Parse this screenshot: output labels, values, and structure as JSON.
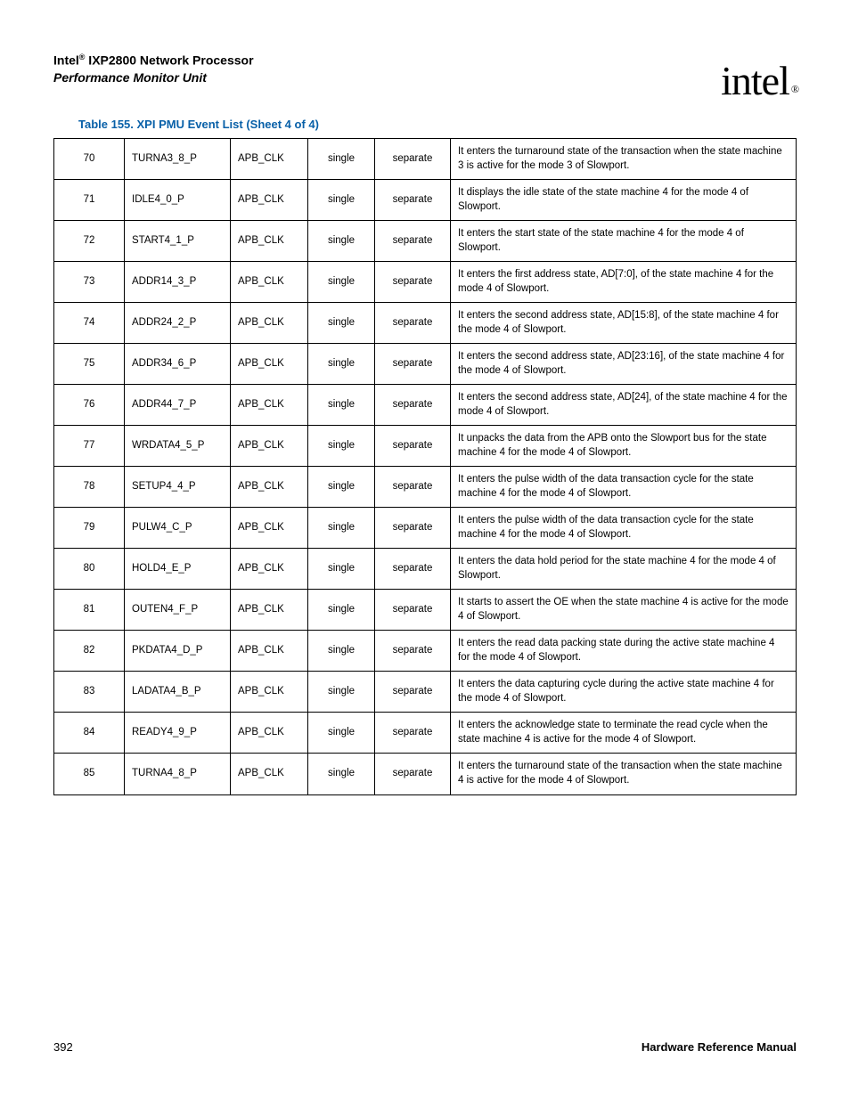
{
  "header": {
    "line1_a": "Intel",
    "line1_sup": "®",
    "line1_b": " IXP2800 Network Processor",
    "line2": "Performance Monitor Unit",
    "logo_text": "intel",
    "logo_reg": "®"
  },
  "caption": "Table 155. XPI PMU Event List (Sheet 4 of 4)",
  "rows": [
    {
      "n": "70",
      "name": "TURNA3_8_P",
      "clk": "APB_CLK",
      "type": "single",
      "sep": "separate",
      "desc": "It enters the turnaround state of the transaction when the state machine 3 is active for the mode 3 of Slowport."
    },
    {
      "n": "71",
      "name": "IDLE4_0_P",
      "clk": "APB_CLK",
      "type": "single",
      "sep": "separate",
      "desc": "It displays the idle state of the state machine 4 for the mode 4 of Slowport."
    },
    {
      "n": "72",
      "name": "START4_1_P",
      "clk": "APB_CLK",
      "type": "single",
      "sep": "separate",
      "desc": "It enters the start state of the state machine 4 for the mode 4 of Slowport."
    },
    {
      "n": "73",
      "name": "ADDR14_3_P",
      "clk": "APB_CLK",
      "type": "single",
      "sep": "separate",
      "desc": "It enters the first address state, AD[7:0], of the state machine 4 for the mode 4 of Slowport."
    },
    {
      "n": "74",
      "name": "ADDR24_2_P",
      "clk": "APB_CLK",
      "type": "single",
      "sep": "separate",
      "desc": "It enters the second address state, AD[15:8], of the state machine 4 for the mode 4 of Slowport."
    },
    {
      "n": "75",
      "name": "ADDR34_6_P",
      "clk": "APB_CLK",
      "type": "single",
      "sep": "separate",
      "desc": "It enters the second address state, AD[23:16], of the state machine 4 for the mode 4 of Slowport."
    },
    {
      "n": "76",
      "name": "ADDR44_7_P",
      "clk": "APB_CLK",
      "type": "single",
      "sep": "separate",
      "desc": "It enters the second address state, AD[24], of the state machine 4 for the mode 4 of Slowport."
    },
    {
      "n": "77",
      "name": "WRDATA4_5_P",
      "clk": "APB_CLK",
      "type": "single",
      "sep": "separate",
      "desc": "It unpacks the data from the APB onto the Slowport bus for the state machine 4 for the mode 4 of Slowport."
    },
    {
      "n": "78",
      "name": "SETUP4_4_P",
      "clk": "APB_CLK",
      "type": "single",
      "sep": "separate",
      "desc": "It enters the pulse width of the data transaction cycle for the state machine 4 for the mode 4 of Slowport."
    },
    {
      "n": "79",
      "name": "PULW4_C_P",
      "clk": "APB_CLK",
      "type": "single",
      "sep": "separate",
      "desc": "It enters the pulse width of the data transaction cycle for the state machine 4 for the mode 4 of Slowport."
    },
    {
      "n": "80",
      "name": "HOLD4_E_P",
      "clk": "APB_CLK",
      "type": "single",
      "sep": "separate",
      "desc": "It enters the data hold period for the state machine 4 for the mode 4 of Slowport."
    },
    {
      "n": "81",
      "name": "OUTEN4_F_P",
      "clk": "APB_CLK",
      "type": "single",
      "sep": "separate",
      "desc": "It starts to assert the OE when the state machine 4 is active for the mode 4 of Slowport."
    },
    {
      "n": "82",
      "name": "PKDATA4_D_P",
      "clk": "APB_CLK",
      "type": "single",
      "sep": "separate",
      "desc": "It enters the read data packing state during the active state machine 4 for the mode 4 of Slowport."
    },
    {
      "n": "83",
      "name": "LADATA4_B_P",
      "clk": "APB_CLK",
      "type": "single",
      "sep": "separate",
      "desc": "It enters the data capturing cycle during the active state machine 4 for the mode 4 of Slowport."
    },
    {
      "n": "84",
      "name": "READY4_9_P",
      "clk": "APB_CLK",
      "type": "single",
      "sep": "separate",
      "desc": "It enters the acknowledge state to terminate the read cycle when the state machine 4 is active for the mode 4 of Slowport."
    },
    {
      "n": "85",
      "name": "TURNA4_8_P",
      "clk": "APB_CLK",
      "type": "single",
      "sep": "separate",
      "desc": "It enters the turnaround state of the transaction when the state machine 4 is active for the mode 4 of Slowport."
    }
  ],
  "footer": {
    "page": "392",
    "manual": "Hardware Reference Manual"
  }
}
